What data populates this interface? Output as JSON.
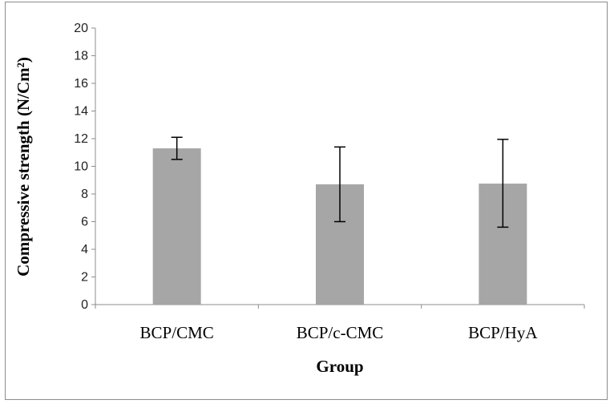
{
  "chart_data": {
    "type": "bar",
    "title": "",
    "xlabel": "Group",
    "ylabel": "Compressive strength (N/Cm²)",
    "categories": [
      "BCP/CMC",
      "BCP/c-CMC",
      "BCP/HyA"
    ],
    "values": [
      11.3,
      8.7,
      8.75
    ],
    "error_low": [
      10.5,
      6.0,
      5.6
    ],
    "error_high": [
      12.1,
      11.4,
      11.95
    ],
    "ylim": [
      0,
      20
    ],
    "yticks": [
      0,
      2,
      4,
      6,
      8,
      10,
      12,
      14,
      16,
      18,
      20
    ],
    "grid": false,
    "legend": "none",
    "bar_color": "#a6a6a6",
    "axis_color": "#8c8c8c",
    "error_color": "#000000"
  }
}
